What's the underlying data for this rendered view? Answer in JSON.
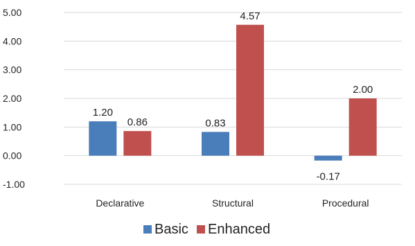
{
  "chart_data": {
    "type": "bar",
    "categories": [
      "Declarative",
      "Structural",
      "Procedural"
    ],
    "series": [
      {
        "name": "Basic",
        "values": [
          1.2,
          0.83,
          -0.17
        ],
        "labels": [
          "1.20",
          "0.83",
          "-0.17"
        ],
        "color": "#4a7ebb"
      },
      {
        "name": "Enhanced",
        "values": [
          0.86,
          4.57,
          2.0
        ],
        "labels": [
          "0.86",
          "4.57",
          "2.00"
        ],
        "color": "#c0504d"
      }
    ],
    "yticks": [
      -1,
      0,
      1,
      2,
      3,
      4,
      5
    ],
    "ytick_labels": [
      "-1.00",
      "0.00",
      "1.00",
      "2.00",
      "3.00",
      "4.00",
      "5.00"
    ],
    "ylim": [
      -1,
      5
    ],
    "grid": true,
    "legend_position": "bottom",
    "title": "",
    "xlabel": "",
    "ylabel": ""
  }
}
